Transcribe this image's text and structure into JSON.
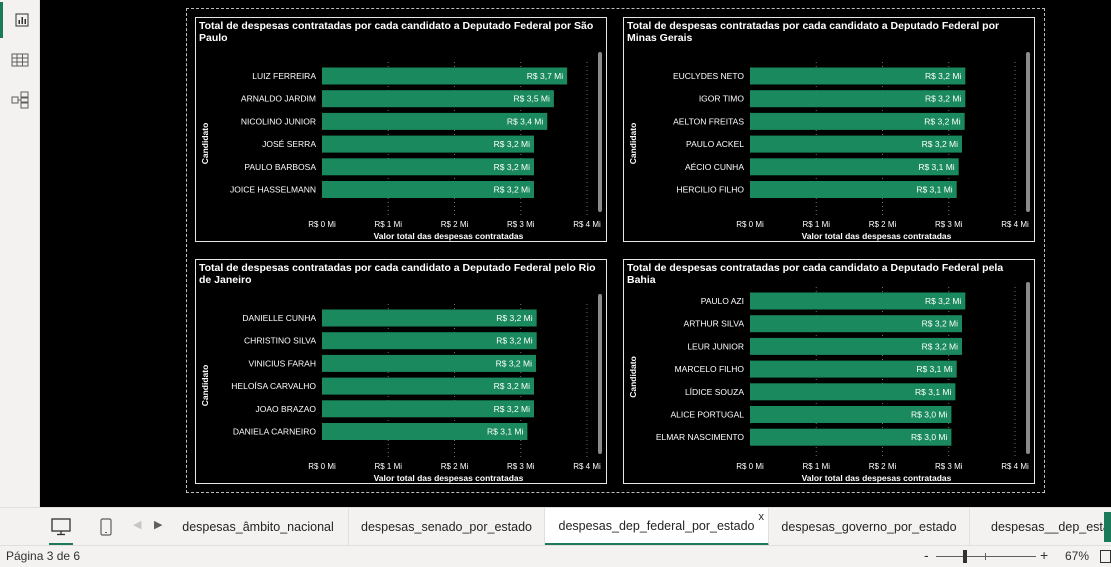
{
  "sidebar": {
    "items": [
      {
        "name": "report-view",
        "icon": "bar-chart-icon"
      },
      {
        "name": "data-view",
        "icon": "table-icon"
      },
      {
        "name": "model-view",
        "icon": "model-icon"
      }
    ]
  },
  "charts": [
    {
      "title": "Total de despesas contratadas por cada candidato a Deputado Federal por São Paulo",
      "y_axis_label": "Candidato",
      "x_axis_label": "Valor total das despesas contratadas"
    },
    {
      "title": "Total de despesas contratadas por cada candidato a Deputado Federal por Minas Gerais",
      "y_axis_label": "Candidato",
      "x_axis_label": "Valor total das despesas contratadas"
    },
    {
      "title": "Total de despesas contratadas por cada candidato a Deputado Federal pelo Rio de Janeiro",
      "y_axis_label": "Candidato",
      "x_axis_label": "Valor total das despesas contratadas"
    },
    {
      "title": "Total de despesas contratadas por cada candidato a Deputado Federal pela Bahia",
      "y_axis_label": "Candidato",
      "x_axis_label": "Valor total das despesas contratadas"
    }
  ],
  "chart_data": [
    {
      "type": "bar",
      "orientation": "horizontal",
      "title": "Total de despesas contratadas por cada candidato a Deputado Federal por São Paulo",
      "categories": [
        "LUIZ FERREIRA",
        "ARNALDO JARDIM",
        "NICOLINO JUNIOR",
        "JOSÉ SERRA",
        "PAULO BARBOSA",
        "JOICE HASSELMANN"
      ],
      "values": [
        3.7,
        3.5,
        3.4,
        3.2,
        3.2,
        3.2
      ],
      "data_labels": [
        "R$ 3,7 Mi",
        "R$ 3,5 Mi",
        "R$ 3,4 Mi",
        "R$ 3,2 Mi",
        "R$ 3,2 Mi",
        "R$ 3,2 Mi"
      ],
      "xlabel": "Valor total das despesas contratadas",
      "ylabel": "Candidato",
      "xlim": [
        0,
        4
      ],
      "ticks": [
        "R$ 0 Mi",
        "R$ 1 Mi",
        "R$ 2 Mi",
        "R$ 3 Mi",
        "R$ 4 Mi"
      ],
      "bar_color": "#1a8a5e",
      "grid": true
    },
    {
      "type": "bar",
      "orientation": "horizontal",
      "title": "Total de despesas contratadas por cada candidato a Deputado Federal por Minas Gerais",
      "categories": [
        "EUCLYDES NETO",
        "IGOR TIMO",
        "AELTON FREITAS",
        "PAULO ACKEL",
        "AÉCIO CUNHA",
        "HERCILIO FILHO"
      ],
      "values": [
        3.25,
        3.25,
        3.24,
        3.2,
        3.15,
        3.12
      ],
      "data_labels": [
        "R$ 3,2 Mi",
        "R$ 3,2 Mi",
        "R$ 3,2 Mi",
        "R$ 3,2 Mi",
        "R$ 3,1 Mi",
        "R$ 3,1 Mi"
      ],
      "xlabel": "Valor total das despesas contratadas",
      "ylabel": "Candidato",
      "xlim": [
        0,
        4
      ],
      "ticks": [
        "R$ 0 Mi",
        "R$ 1 Mi",
        "R$ 2 Mi",
        "R$ 3 Mi",
        "R$ 4 Mi"
      ],
      "bar_color": "#1a8a5e",
      "grid": true
    },
    {
      "type": "bar",
      "orientation": "horizontal",
      "title": "Total de despesas contratadas por cada candidato a Deputado Federal pelo Rio de Janeiro",
      "categories": [
        "DANIELLE CUNHA",
        "CHRISTINO SILVA",
        "VINICIUS FARAH",
        "HELOÍSA CARVALHO",
        "JOAO BRAZAO",
        "DANIELA CARNEIRO"
      ],
      "values": [
        3.24,
        3.24,
        3.23,
        3.2,
        3.2,
        3.1
      ],
      "data_labels": [
        "R$ 3,2 Mi",
        "R$ 3,2 Mi",
        "R$ 3,2 Mi",
        "R$ 3,2 Mi",
        "R$ 3,2 Mi",
        "R$ 3,1 Mi"
      ],
      "xlabel": "Valor total das despesas contratadas",
      "ylabel": "Candidato",
      "xlim": [
        0,
        4
      ],
      "ticks": [
        "R$ 0 Mi",
        "R$ 1 Mi",
        "R$ 2 Mi",
        "R$ 3 Mi",
        "R$ 4 Mi"
      ],
      "bar_color": "#1a8a5e",
      "grid": true
    },
    {
      "type": "bar",
      "orientation": "horizontal",
      "title": "Total de despesas contratadas por cada candidato a Deputado Federal pela Bahia",
      "categories": [
        "PAULO AZI",
        "ARTHUR SILVA",
        "LEUR JUNIOR",
        "MARCELO FILHO",
        "LÍDICE SOUZA",
        "ALICE PORTUGAL",
        "ELMAR NASCIMENTO"
      ],
      "values": [
        3.25,
        3.2,
        3.2,
        3.12,
        3.1,
        3.04,
        3.04
      ],
      "data_labels": [
        "R$ 3,2 Mi",
        "R$ 3,2 Mi",
        "R$ 3,2 Mi",
        "R$ 3,1 Mi",
        "R$ 3,1 Mi",
        "R$ 3,0 Mi",
        "R$ 3,0 Mi"
      ],
      "xlabel": "Valor total das despesas contratadas",
      "ylabel": "Candidato",
      "xlim": [
        0,
        4
      ],
      "ticks": [
        "R$ 0 Mi",
        "R$ 1 Mi",
        "R$ 2 Mi",
        "R$ 3 Mi",
        "R$ 4 Mi"
      ],
      "bar_color": "#1a8a5e",
      "grid": true
    }
  ],
  "tabs": {
    "items": [
      {
        "label": "despesas_âmbito_nacional"
      },
      {
        "label": "despesas_senado_por_estado"
      },
      {
        "label": "despesas_dep_federal_por_estado",
        "active": true
      },
      {
        "label": "despesas_governo_por_estado"
      },
      {
        "label": "despesas__dep_estad"
      }
    ],
    "close_glyph": "x"
  },
  "status": {
    "page_indicator": "Página 3 de 6",
    "zoom_minus": "-",
    "zoom_plus": "+",
    "zoom": "67%",
    "zoom_level": 0.67
  },
  "colors": {
    "accent": "#1b7a5a",
    "bar": "#1a8a5e",
    "canvas": "#000000"
  }
}
